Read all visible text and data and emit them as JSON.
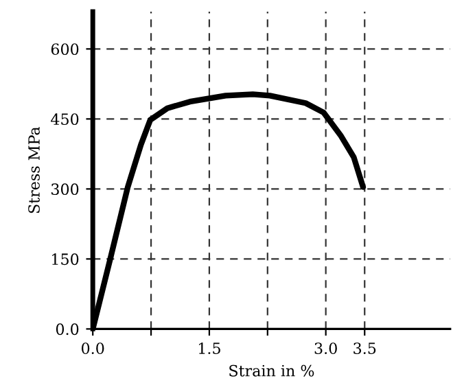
{
  "chart_data": {
    "type": "line",
    "xlabel": "Strain in %",
    "ylabel": "Stress MPa",
    "x": [
      0,
      0.22,
      0.45,
      0.62,
      0.74,
      0.96,
      1.25,
      1.71,
      2.06,
      2.28,
      2.74,
      2.97,
      3.19,
      3.36,
      3.48
    ],
    "series": [
      {
        "color": "#000000",
        "values": [
          0,
          147,
          304,
          395,
          448,
          473,
          487,
          500,
          503,
          500,
          484,
          464,
          415,
          368,
          304
        ]
      }
    ],
    "xlim": [
      0,
      4.6
    ],
    "ylim": [
      0,
      680
    ],
    "xticks": [
      {
        "value": 0,
        "label": "0.0"
      },
      {
        "value": 0.75,
        "label": null
      },
      1.5,
      {
        "value": 2.25,
        "label": null
      },
      {
        "value": 3.0,
        "label": "3.0"
      },
      3.5
    ],
    "yticks": [
      {
        "value": 0,
        "label": "0.0"
      },
      150,
      300,
      450,
      600
    ],
    "grid": true,
    "marker": "none",
    "line_style": "solid",
    "legend": false
  }
}
